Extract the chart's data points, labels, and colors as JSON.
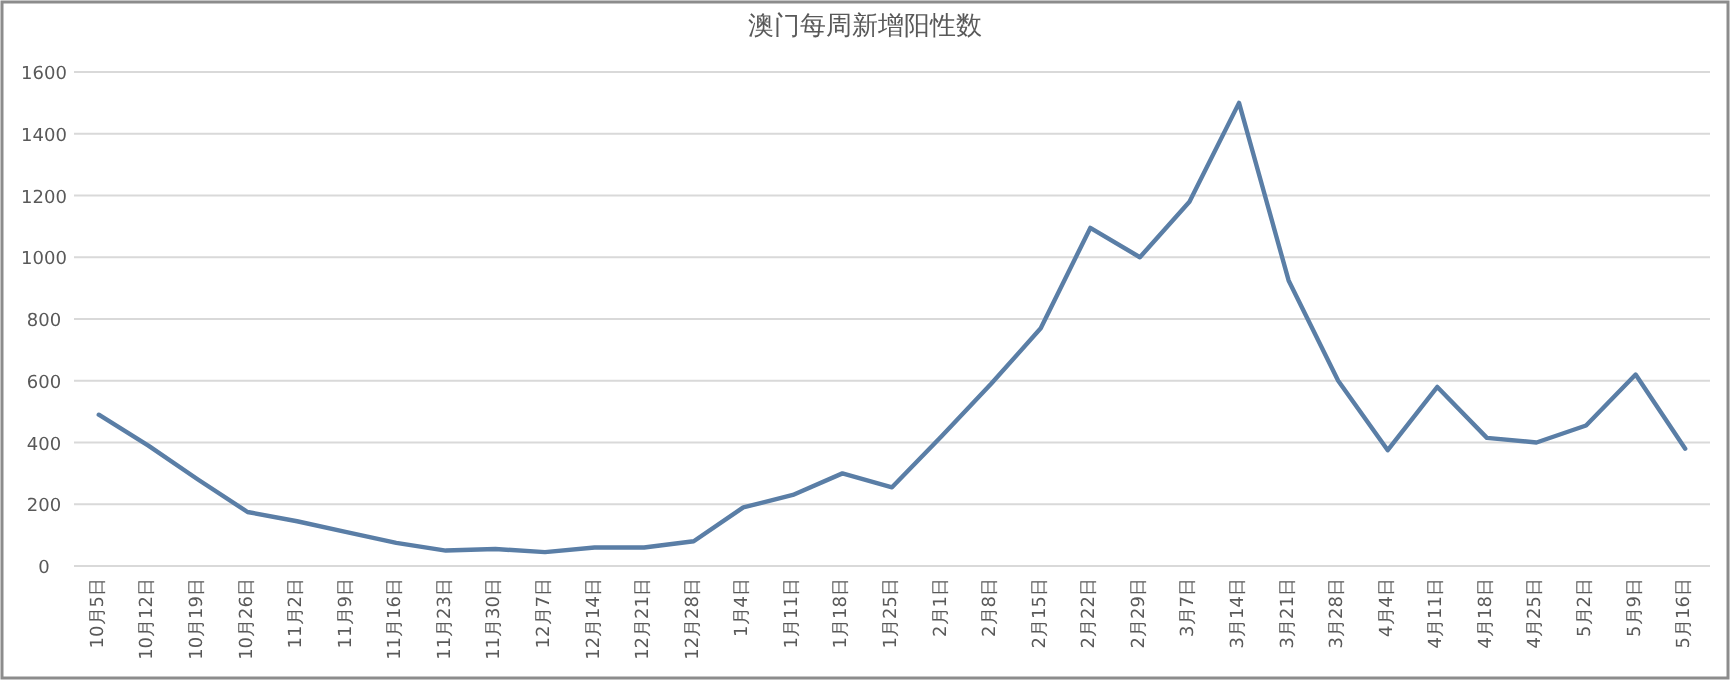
{
  "chart_data": {
    "type": "line",
    "title": "澳门每周新增阳性数",
    "categories": [
      "10月5日",
      "10月12日",
      "10月19日",
      "10月26日",
      "11月2日",
      "11月9日",
      "11月16日",
      "11月23日",
      "11月30日",
      "12月7日",
      "12月14日",
      "12月21日",
      "12月28日",
      "1月4日",
      "1月11日",
      "1月18日",
      "1月25日",
      "2月1日",
      "2月8日",
      "2月15日",
      "2月22日",
      "2月29日",
      "3月7日",
      "3月14日",
      "3月21日",
      "3月28日",
      "4月4日",
      "4月11日",
      "4月18日",
      "4月25日",
      "5月2日",
      "5月9日",
      "5月16日"
    ],
    "series": [
      {
        "color": "#5a7ea6",
        "values": [
          490,
          390,
          280,
          175,
          145,
          110,
          75,
          50,
          55,
          45,
          60,
          60,
          80,
          190,
          230,
          300,
          255,
          420,
          590,
          770,
          1095,
          1000,
          1180,
          1500,
          925,
          600,
          375,
          580,
          415,
          400,
          455,
          620,
          380
        ]
      }
    ],
    "ylim": [
      0,
      1600
    ],
    "yticks": [
      0,
      200,
      400,
      600,
      800,
      1000,
      1200,
      1400,
      1600
    ],
    "grid": "y"
  }
}
